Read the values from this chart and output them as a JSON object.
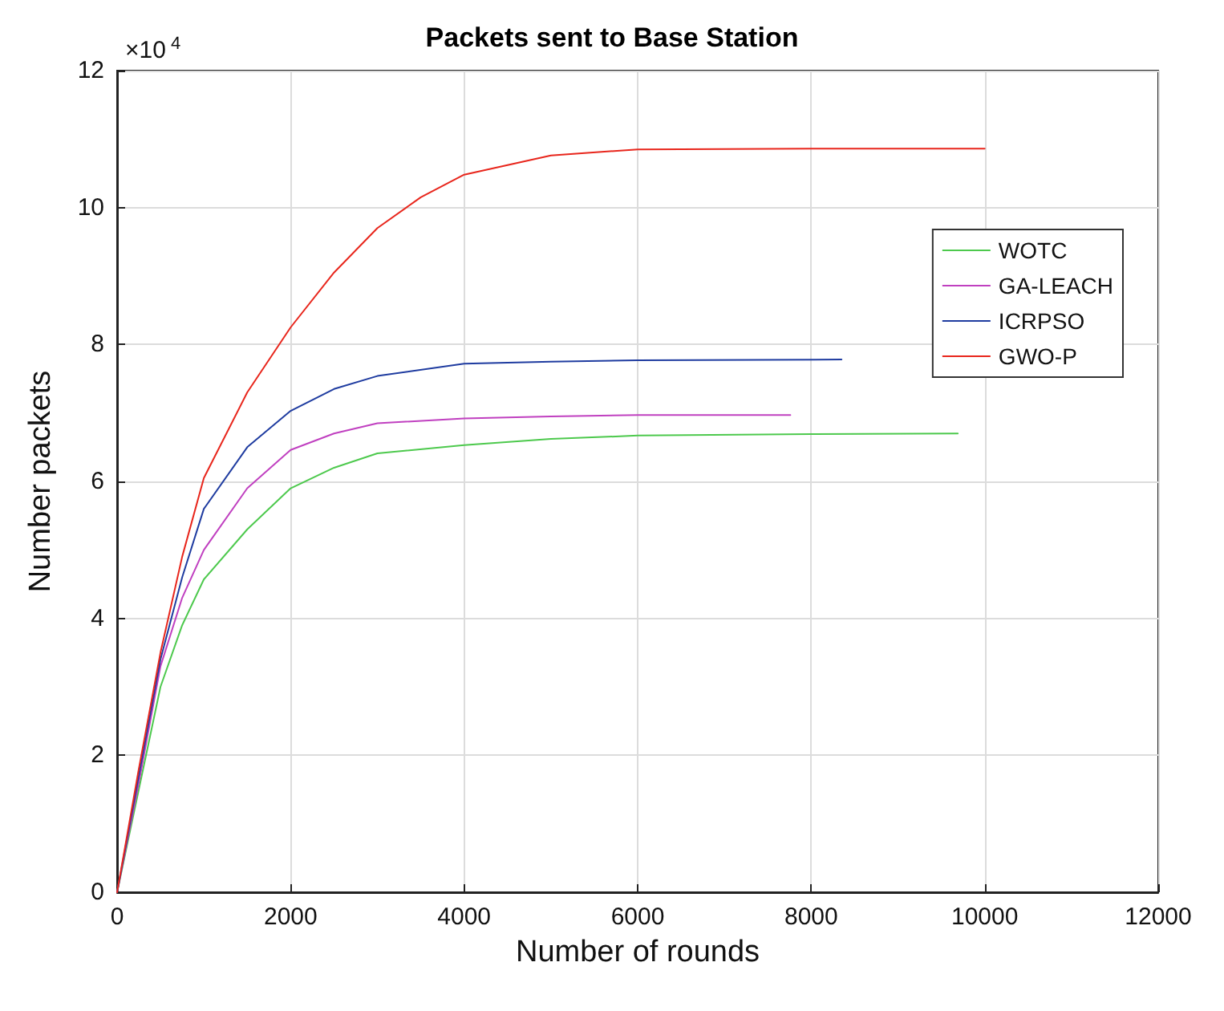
{
  "chart_data": {
    "type": "line",
    "title": "Packets sent to Base Station",
    "xlabel": "Number of rounds",
    "ylabel": "Number packets",
    "annotations": [
      "×10$^{4}$"
    ],
    "xlim": [
      0,
      12000
    ],
    "xticks": [
      0,
      2000,
      4000,
      6000,
      8000,
      10000,
      12000
    ],
    "ylim": [
      0,
      12
    ],
    "yticks": [
      0,
      2,
      4,
      6,
      8,
      10,
      12
    ],
    "grid": true,
    "legend": "top right",
    "line_style": "solid",
    "marker": "none",
    "series": [
      {
        "name": "WOTC",
        "color": "#4dc94d",
        "x": [
          0,
          250,
          500,
          750,
          1000,
          1500,
          2000,
          2500,
          3000,
          4000,
          5000,
          6000,
          8000,
          9690
        ],
        "values": [
          0,
          1.5,
          3.0,
          3.9,
          4.57,
          5.3,
          5.9,
          6.2,
          6.41,
          6.53,
          6.62,
          6.67,
          6.69,
          6.7
        ]
      },
      {
        "name": "GA-LEACH",
        "color": "#c040c0",
        "x": [
          0,
          250,
          500,
          750,
          1000,
          1500,
          2000,
          2500,
          3000,
          4000,
          5000,
          6000,
          7760
        ],
        "values": [
          0,
          1.6,
          3.3,
          4.3,
          5.0,
          5.9,
          6.46,
          6.7,
          6.85,
          6.92,
          6.95,
          6.97,
          6.97
        ]
      },
      {
        "name": "ICRPSO",
        "color": "#1f3ca0",
        "x": [
          0,
          250,
          500,
          750,
          1000,
          1500,
          2000,
          2500,
          3000,
          4000,
          5000,
          6000,
          8350
        ],
        "values": [
          0,
          1.7,
          3.4,
          4.6,
          5.6,
          6.5,
          7.03,
          7.35,
          7.54,
          7.72,
          7.75,
          7.77,
          7.78
        ]
      },
      {
        "name": "GWO-P",
        "color": "#e8261c",
        "x": [
          0,
          250,
          500,
          750,
          1000,
          1500,
          2000,
          2500,
          3000,
          3500,
          4000,
          5000,
          6000,
          8000,
          10000
        ],
        "values": [
          0,
          1.8,
          3.5,
          4.9,
          6.05,
          7.3,
          8.25,
          9.05,
          9.7,
          10.15,
          10.48,
          10.76,
          10.85,
          10.86,
          10.86
        ]
      }
    ]
  }
}
